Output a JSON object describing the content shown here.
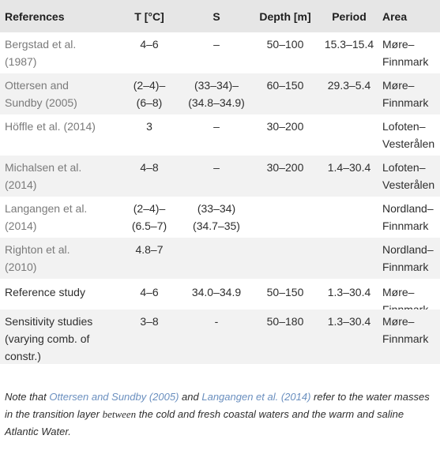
{
  "headers": {
    "references": "References",
    "t": "T [°C]",
    "s": "S",
    "depth": "Depth [m]",
    "period": "Period",
    "area": "Area"
  },
  "rows": [
    {
      "ref": [
        "Bergstad et al.",
        "(1987)"
      ],
      "t": [
        "4–6"
      ],
      "s": [
        "–"
      ],
      "depth": [
        "50–100"
      ],
      "period": [
        "15.3–15.4"
      ],
      "area": [
        "Møre–",
        "Finnmark"
      ]
    },
    {
      "ref": [
        "Ottersen and",
        "Sundby (2005)"
      ],
      "t": [
        "(2–4)–",
        "(6–8)"
      ],
      "s": [
        "(33–34)–",
        "(34.8–34.9)"
      ],
      "depth": [
        "60–150"
      ],
      "period": [
        "29.3–5.4"
      ],
      "area": [
        "Møre–",
        "Finnmark"
      ]
    },
    {
      "ref": [
        "Höffle et al. (2014)"
      ],
      "t": [
        "3"
      ],
      "s": [
        "–"
      ],
      "depth": [
        "30–200"
      ],
      "period": [
        ""
      ],
      "area": [
        "Lofoten–",
        "Vesterålen"
      ]
    },
    {
      "ref": [
        "Michalsen et al.",
        "(2014)"
      ],
      "t": [
        "4–8"
      ],
      "s": [
        "–"
      ],
      "depth": [
        "30–200"
      ],
      "period": [
        "1.4–30.4"
      ],
      "area": [
        "Lofoten–",
        "Vesterålen"
      ]
    },
    {
      "ref": [
        "Langangen et al.",
        "(2014)"
      ],
      "t": [
        "(2–4)–",
        "(6.5–7)"
      ],
      "s": [
        "(33–34)",
        "(34.7–35)"
      ],
      "depth": [
        ""
      ],
      "period": [
        ""
      ],
      "area": [
        "Nordland–",
        "Finnmark"
      ]
    },
    {
      "ref": [
        "Righton et al.",
        "(2010)"
      ],
      "t": [
        "4.8–7"
      ],
      "s": [
        ""
      ],
      "depth": [
        ""
      ],
      "period": [
        ""
      ],
      "area": [
        "Nordland–",
        "Finnmark"
      ]
    },
    {
      "ref": [
        "Reference study"
      ],
      "t": [
        "4–6"
      ],
      "s": [
        "34.0–34.9"
      ],
      "depth": [
        "50–150"
      ],
      "period": [
        "1.3–30.4"
      ],
      "area": [
        "Møre–",
        "Finnmark"
      ]
    },
    {
      "ref": [
        "Sensitivity studies",
        "(varying comb. of",
        "constr.)"
      ],
      "t": [
        "3–8"
      ],
      "s": [
        "-"
      ],
      "depth": [
        "50–180"
      ],
      "period": [
        "1.3–30.4"
      ],
      "area": [
        "Møre–",
        "Finnmark"
      ]
    }
  ],
  "note": {
    "part1": "Note that ",
    "link1": "Ottersen and Sundby (2005)",
    "part2": " and ",
    "link2": "Langangen et al. (2014)",
    "part3": " refer to the water masses in the transition layer ",
    "between": "between",
    "part4": " the cold and fresh coastal waters and the warm and saline Atlantic Water."
  }
}
